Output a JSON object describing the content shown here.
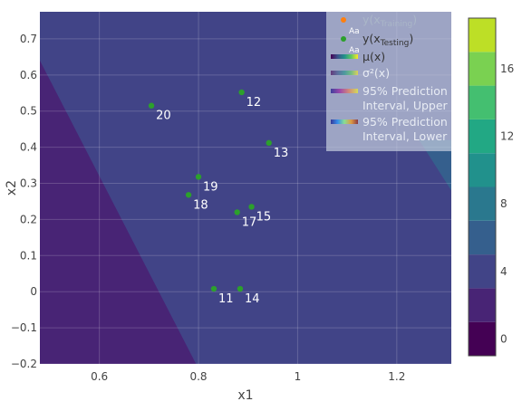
{
  "chart_data": {
    "type": "contour",
    "xlabel": "x1",
    "ylabel": "x2",
    "xlim": [
      0.48,
      1.31
    ],
    "ylim": [
      -0.2,
      0.775
    ],
    "xticks": [
      0.6,
      0.8,
      1,
      1.2
    ],
    "xtick_labels": [
      "0.6",
      "0.8",
      "1",
      "1.2"
    ],
    "yticks": [
      -0.2,
      -0.1,
      0,
      0.1,
      0.2,
      0.3,
      0.4,
      0.5,
      0.6,
      0.7
    ],
    "ytick_labels": [
      "−0.2",
      "−0.1",
      "0",
      "0.1",
      "0.2",
      "0.3",
      "0.4",
      "0.5",
      "0.6",
      "0.7"
    ],
    "grid": true,
    "contour": {
      "colorscale": "Viridis",
      "levels": [
        -1,
        1,
        3,
        5,
        7,
        9,
        11,
        13,
        15,
        17,
        19
      ],
      "colorbar_ticks": [
        0,
        4,
        8,
        12,
        16
      ],
      "colorbar_tick_labels": [
        "0",
        "4",
        "8",
        "12",
        "16"
      ],
      "band_colors": [
        "#440154",
        "#482475",
        "#414487",
        "#355f8d",
        "#2a788e",
        "#21918c",
        "#22a884",
        "#44bf70",
        "#7ad151",
        "#bddf26",
        "#fde725"
      ],
      "regions": [
        {
          "level_band": 1,
          "color": "#482475",
          "description_polygon_x": [
            0.48,
            0.48,
            0.795
          ],
          "description_polygon_y": [
            0.64,
            -0.2,
            -0.2
          ]
        },
        {
          "level_band": 2,
          "color": "#414487"
        },
        {
          "level_band": 3,
          "color": "#355f8d",
          "polygon_x": [
            1.245,
            1.31,
            1.31
          ],
          "polygon_y": [
            0.42,
            0.42,
            0.28
          ]
        }
      ]
    },
    "series": [
      {
        "name": "y(x_Testing)",
        "type": "scatter",
        "color": "#2ca02c",
        "points": [
          {
            "x": 0.705,
            "y": 0.515,
            "label": "20"
          },
          {
            "x": 0.887,
            "y": 0.552,
            "label": "12"
          },
          {
            "x": 0.942,
            "y": 0.412,
            "label": "13"
          },
          {
            "x": 0.8,
            "y": 0.318,
            "label": "19"
          },
          {
            "x": 0.78,
            "y": 0.268,
            "label": "18"
          },
          {
            "x": 0.907,
            "y": 0.235,
            "label": "15"
          },
          {
            "x": 0.878,
            "y": 0.22,
            "label": "17"
          },
          {
            "x": 0.831,
            "y": 0.008,
            "label": "11"
          },
          {
            "x": 0.884,
            "y": 0.008,
            "label": "14"
          }
        ]
      }
    ],
    "legend": {
      "placement": "top-right",
      "entries": [
        {
          "main": "y(x",
          "sub": "Training",
          "close": ")",
          "symbol": "marker",
          "color": "#ff7f0e",
          "marker_text": "Aa"
        },
        {
          "main": "y(x",
          "sub": "Testing",
          "close": ")",
          "symbol": "marker",
          "color": "#2ca02c",
          "marker_text": "Aa"
        },
        {
          "main": "μ(x)",
          "symbol": "bar",
          "colorscale": "Viridis"
        },
        {
          "main": "σ²(x)",
          "symbol": "bar",
          "colorscale": "Viridis"
        },
        {
          "main": "95% Prediction",
          "main2": "Interval, Upper",
          "symbol": "bar",
          "colorscale": "Plasma"
        },
        {
          "main": "95% Prediction",
          "main2": "Interval, Lower",
          "symbol": "bar",
          "colorscale": "Jet"
        }
      ]
    }
  }
}
